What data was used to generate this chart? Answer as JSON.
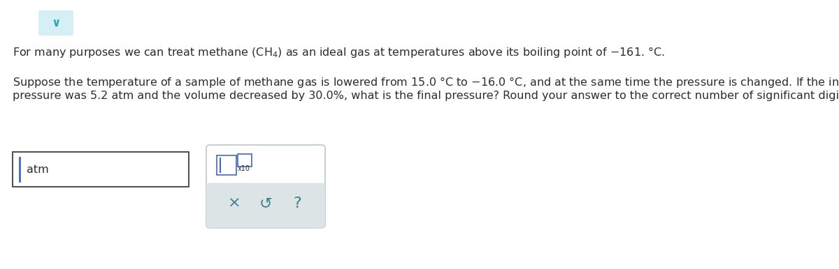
{
  "bg_color": "#ffffff",
  "chevron_bg": "#d6eff4",
  "chevron_color": "#2ba8be",
  "text_color": "#2d2d2d",
  "text_fontsize": 11.5,
  "line1": "For many purposes we can treat methane $\\left(\\mathrm{CH_4}\\right)$ as an ideal gas at temperatures above its boiling point of $-$161. °C.",
  "line2": "Suppose the temperature of a sample of methane gas is lowered from 15.0 °C to $-$16.0 °C, and at the same time the pressure is changed. If the initial",
  "line3": "pressure was 5.2 atm and the volume decreased by 30.0%, what is the final pressure? Round your answer to the correct number of significant digits.",
  "atm_label": "atm",
  "icon_x_label": "×",
  "icon_undo_label": "↺",
  "icon_q_label": "?",
  "icon_color": "#3d7f8f",
  "input_box_color": "#555555",
  "cursor_color": "#4466bb",
  "panel_border_color": "#b8c8cc",
  "panel_bg": "#ffffff",
  "gray_bar_color": "#dce4e6"
}
